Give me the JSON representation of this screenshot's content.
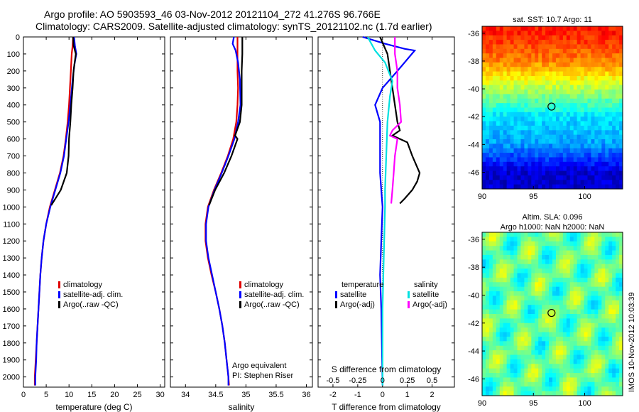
{
  "header": {
    "line1": "Argo profile: AO 5903593_46 03-Nov-2012 20121104_272 41.276S 96.766E",
    "line2": "Climatology: CARS2009. Satellite-adjusted climatology: synTS_20121102.nc (1.7d earlier)"
  },
  "footer_stamp": "IMOS 10-Nov-2012 10:03:39",
  "colors": {
    "climatology": "#e00000",
    "satellite": "#0000ff",
    "argo": "#000000",
    "sat_salinity": "#00e0e0",
    "argo_salinity": "#ff00ff"
  },
  "chart_data": [
    {
      "type": "line",
      "id": "temperature",
      "xlabel": "temperature (deg C)",
      "xlim": [
        0,
        31
      ],
      "xticks": [
        0,
        5,
        10,
        15,
        20,
        25,
        30
      ],
      "ylim": [
        0,
        2060
      ],
      "yticks": [
        0,
        100,
        200,
        300,
        400,
        500,
        600,
        700,
        800,
        900,
        1000,
        1100,
        1200,
        1300,
        1400,
        1500,
        1600,
        1700,
        1800,
        1900,
        2000
      ],
      "legend": [
        "climatology",
        "satellite-adj. clim.",
        "Argo(..raw -QC)"
      ],
      "series": [
        {
          "name": "climatology",
          "color": "#e00000",
          "points": [
            [
              10.9,
              0
            ],
            [
              10.8,
              50
            ],
            [
              10.6,
              100
            ],
            [
              10.4,
              200
            ],
            [
              10.2,
              300
            ],
            [
              10.0,
              400
            ],
            [
              9.7,
              500
            ],
            [
              9.3,
              600
            ],
            [
              8.8,
              700
            ],
            [
              8.0,
              800
            ],
            [
              6.9,
              900
            ],
            [
              5.8,
              1000
            ],
            [
              5.0,
              1100
            ],
            [
              4.4,
              1200
            ],
            [
              4.0,
              1300
            ],
            [
              3.7,
              1400
            ],
            [
              3.5,
              1500
            ],
            [
              3.3,
              1600
            ],
            [
              3.1,
              1700
            ],
            [
              2.9,
              1800
            ],
            [
              2.7,
              1900
            ],
            [
              2.5,
              2000
            ],
            [
              2.5,
              2050
            ]
          ]
        },
        {
          "name": "satellite-adj. clim.",
          "color": "#0000ff",
          "points": [
            [
              11.1,
              0
            ],
            [
              11.3,
              50
            ],
            [
              11.6,
              100
            ],
            [
              11.2,
              160
            ],
            [
              10.8,
              250
            ],
            [
              10.3,
              400
            ],
            [
              9.9,
              500
            ],
            [
              9.4,
              600
            ],
            [
              8.9,
              700
            ],
            [
              8.1,
              800
            ],
            [
              7.0,
              900
            ],
            [
              5.9,
              1000
            ],
            [
              5.0,
              1100
            ],
            [
              4.4,
              1200
            ],
            [
              4.0,
              1300
            ],
            [
              3.7,
              1400
            ],
            [
              3.5,
              1500
            ],
            [
              3.3,
              1600
            ],
            [
              3.1,
              1700
            ],
            [
              2.9,
              1800
            ],
            [
              2.8,
              1900
            ],
            [
              2.6,
              2000
            ],
            [
              2.6,
              2050
            ]
          ]
        },
        {
          "name": "Argo(..raw -QC)",
          "color": "#000000",
          "points": [
            [
              10.9,
              0
            ],
            [
              11.0,
              50
            ],
            [
              11.3,
              80
            ],
            [
              11.5,
              100
            ],
            [
              11.0,
              200
            ],
            [
              10.8,
              300
            ],
            [
              10.5,
              400
            ],
            [
              10.3,
              500
            ],
            [
              10.0,
              600
            ],
            [
              9.9,
              700
            ],
            [
              9.5,
              800
            ],
            [
              8.2,
              900
            ],
            [
              6.1,
              990
            ]
          ]
        }
      ]
    },
    {
      "type": "line",
      "id": "salinity",
      "xlabel": "salinity",
      "xlim": [
        33.75,
        36.1
      ],
      "xticks": [
        34,
        34.5,
        35,
        35.5,
        36
      ],
      "ylim": [
        0,
        2060
      ],
      "legend": [
        "climatology",
        "satellite-adj. clim.",
        "Argo(..raw -QC)"
      ],
      "annotation": [
        "Argo equivalent",
        "PI: Stephen Riser"
      ],
      "series": [
        {
          "name": "climatology",
          "color": "#e00000",
          "points": [
            [
              34.86,
              0
            ],
            [
              34.86,
              100
            ],
            [
              34.86,
              200
            ],
            [
              34.87,
              300
            ],
            [
              34.86,
              400
            ],
            [
              34.84,
              500
            ],
            [
              34.79,
              600
            ],
            [
              34.7,
              700
            ],
            [
              34.59,
              800
            ],
            [
              34.47,
              900
            ],
            [
              34.37,
              1000
            ],
            [
              34.33,
              1100
            ],
            [
              34.33,
              1200
            ],
            [
              34.37,
              1300
            ],
            [
              34.43,
              1400
            ],
            [
              34.5,
              1500
            ],
            [
              34.56,
              1600
            ],
            [
              34.61,
              1700
            ],
            [
              34.65,
              1800
            ],
            [
              34.68,
              1900
            ],
            [
              34.71,
              2000
            ],
            [
              34.72,
              2050
            ]
          ]
        },
        {
          "name": "satellite-adj. clim.",
          "color": "#0000ff",
          "points": [
            [
              34.8,
              0
            ],
            [
              34.78,
              40
            ],
            [
              34.83,
              80
            ],
            [
              34.87,
              150
            ],
            [
              34.9,
              250
            ],
            [
              34.91,
              400
            ],
            [
              34.87,
              500
            ],
            [
              34.81,
              600
            ],
            [
              34.71,
              700
            ],
            [
              34.6,
              800
            ],
            [
              34.48,
              900
            ],
            [
              34.38,
              1000
            ],
            [
              34.34,
              1100
            ],
            [
              34.34,
              1200
            ],
            [
              34.38,
              1300
            ],
            [
              34.44,
              1400
            ],
            [
              34.5,
              1500
            ],
            [
              34.56,
              1600
            ],
            [
              34.61,
              1700
            ],
            [
              34.65,
              1800
            ],
            [
              34.68,
              1900
            ],
            [
              34.71,
              2000
            ],
            [
              34.71,
              2050
            ]
          ]
        },
        {
          "name": "Argo(..raw -QC)",
          "color": "#000000",
          "points": [
            [
              34.94,
              0
            ],
            [
              34.94,
              100
            ],
            [
              34.93,
              200
            ],
            [
              34.93,
              300
            ],
            [
              34.93,
              400
            ],
            [
              34.9,
              500
            ],
            [
              34.82,
              580
            ],
            [
              34.86,
              600
            ],
            [
              34.76,
              700
            ],
            [
              34.64,
              800
            ],
            [
              34.49,
              900
            ],
            [
              34.39,
              990
            ]
          ]
        }
      ]
    },
    {
      "type": "line",
      "id": "difference",
      "xlabel": "T difference from climatology",
      "xlabel_top": "S difference from climatology",
      "xlim": [
        -2.6,
        2.9
      ],
      "xticks": [
        -2,
        -1,
        0,
        1,
        2
      ],
      "xticks_top": [
        -0.5,
        -0.25,
        0,
        0.25,
        0.5
      ],
      "xticks_top_labels": [
        "-0.5",
        "-0.25",
        "0",
        "0.25",
        "0.5"
      ],
      "ylim": [
        0,
        2060
      ],
      "legend_headers": [
        "temperature",
        "salinity"
      ],
      "legend": [
        [
          "satellite",
          "Argo(-adj)"
        ],
        [
          "satellite",
          "Argo(-adj)"
        ]
      ],
      "series": [
        {
          "name": "temperature satellite",
          "color": "#0000ff",
          "points": [
            [
              -0.8,
              0
            ],
            [
              0.1,
              40
            ],
            [
              0.9,
              70
            ],
            [
              1.3,
              80
            ],
            [
              0.6,
              200
            ],
            [
              0.0,
              300
            ],
            [
              -0.3,
              400
            ],
            [
              -0.1,
              500
            ],
            [
              -0.1,
              600
            ],
            [
              -0.1,
              700
            ],
            [
              -0.1,
              800
            ],
            [
              -0.05,
              900
            ],
            [
              0.0,
              1000
            ],
            [
              -0.05,
              1200
            ],
            [
              -0.1,
              1400
            ],
            [
              -0.05,
              1600
            ],
            [
              0.0,
              2050
            ]
          ]
        },
        {
          "name": "temperature Argo(-adj)",
          "color": "#000000",
          "points": [
            [
              -0.1,
              0
            ],
            [
              0.2,
              100
            ],
            [
              0.3,
              200
            ],
            [
              0.4,
              300
            ],
            [
              0.5,
              400
            ],
            [
              0.6,
              500
            ],
            [
              0.7,
              550
            ],
            [
              0.4,
              580
            ],
            [
              1.0,
              620
            ],
            [
              1.2,
              700
            ],
            [
              1.5,
              800
            ],
            [
              1.4,
              850
            ],
            [
              1.2,
              900
            ],
            [
              0.9,
              950
            ],
            [
              0.7,
              980
            ]
          ]
        },
        {
          "name": "salinity satellite",
          "color": "#00e0e0",
          "points": [
            [
              -0.6,
              0
            ],
            [
              -0.3,
              80
            ],
            [
              0.1,
              150
            ],
            [
              0.4,
              260
            ],
            [
              0.3,
              350
            ],
            [
              0.2,
              500
            ],
            [
              0.15,
              700
            ],
            [
              0.1,
              900
            ],
            [
              0.1,
              1000
            ],
            [
              0.05,
              1300
            ],
            [
              0.0,
              1600
            ],
            [
              0.0,
              2050
            ]
          ]
        },
        {
          "name": "salinity Argo(-adj)",
          "color": "#ff00ff",
          "points": [
            [
              0.5,
              0
            ],
            [
              0.5,
              100
            ],
            [
              0.6,
              200
            ],
            [
              0.6,
              300
            ],
            [
              0.7,
              400
            ],
            [
              0.75,
              500
            ],
            [
              0.4,
              550
            ],
            [
              0.3,
              580
            ],
            [
              0.6,
              600
            ],
            [
              0.5,
              700
            ],
            [
              0.45,
              800
            ],
            [
              0.4,
              900
            ],
            [
              0.35,
              980
            ]
          ]
        }
      ]
    },
    {
      "type": "heatmap",
      "id": "sst-map",
      "title": "sat. SST: 10.7 Argo: 11",
      "xlim": [
        90,
        103.7
      ],
      "ylim": [
        -47.2,
        -35.5
      ],
      "xticks": [
        90,
        95,
        100
      ],
      "yticks": [
        -36,
        -38,
        -40,
        -42,
        -44,
        -46
      ],
      "argo_location": {
        "lon": 96.766,
        "lat": -41.276
      },
      "value_range": [
        7,
        17
      ],
      "values_by_lat": [
        {
          "lat": -36,
          "value": 15.5
        },
        {
          "lat": -38,
          "value": 14.5
        },
        {
          "lat": -40,
          "value": 12.5
        },
        {
          "lat": -42,
          "value": 10.5
        },
        {
          "lat": -44,
          "value": 9.8
        },
        {
          "lat": -46,
          "value": 7.8
        }
      ]
    },
    {
      "type": "heatmap",
      "id": "sla-map",
      "title": "Altim. SLA: 0.096",
      "subtitle": "Argo h1000: NaN h2000: NaN",
      "xlim": [
        90,
        103.7
      ],
      "ylim": [
        -47.2,
        -35.5
      ],
      "xticks": [
        90,
        95,
        100
      ],
      "yticks": [
        -36,
        -38,
        -40,
        -42,
        -44,
        -46
      ],
      "argo_location": {
        "lon": 96.766,
        "lat": -41.276
      }
    }
  ]
}
